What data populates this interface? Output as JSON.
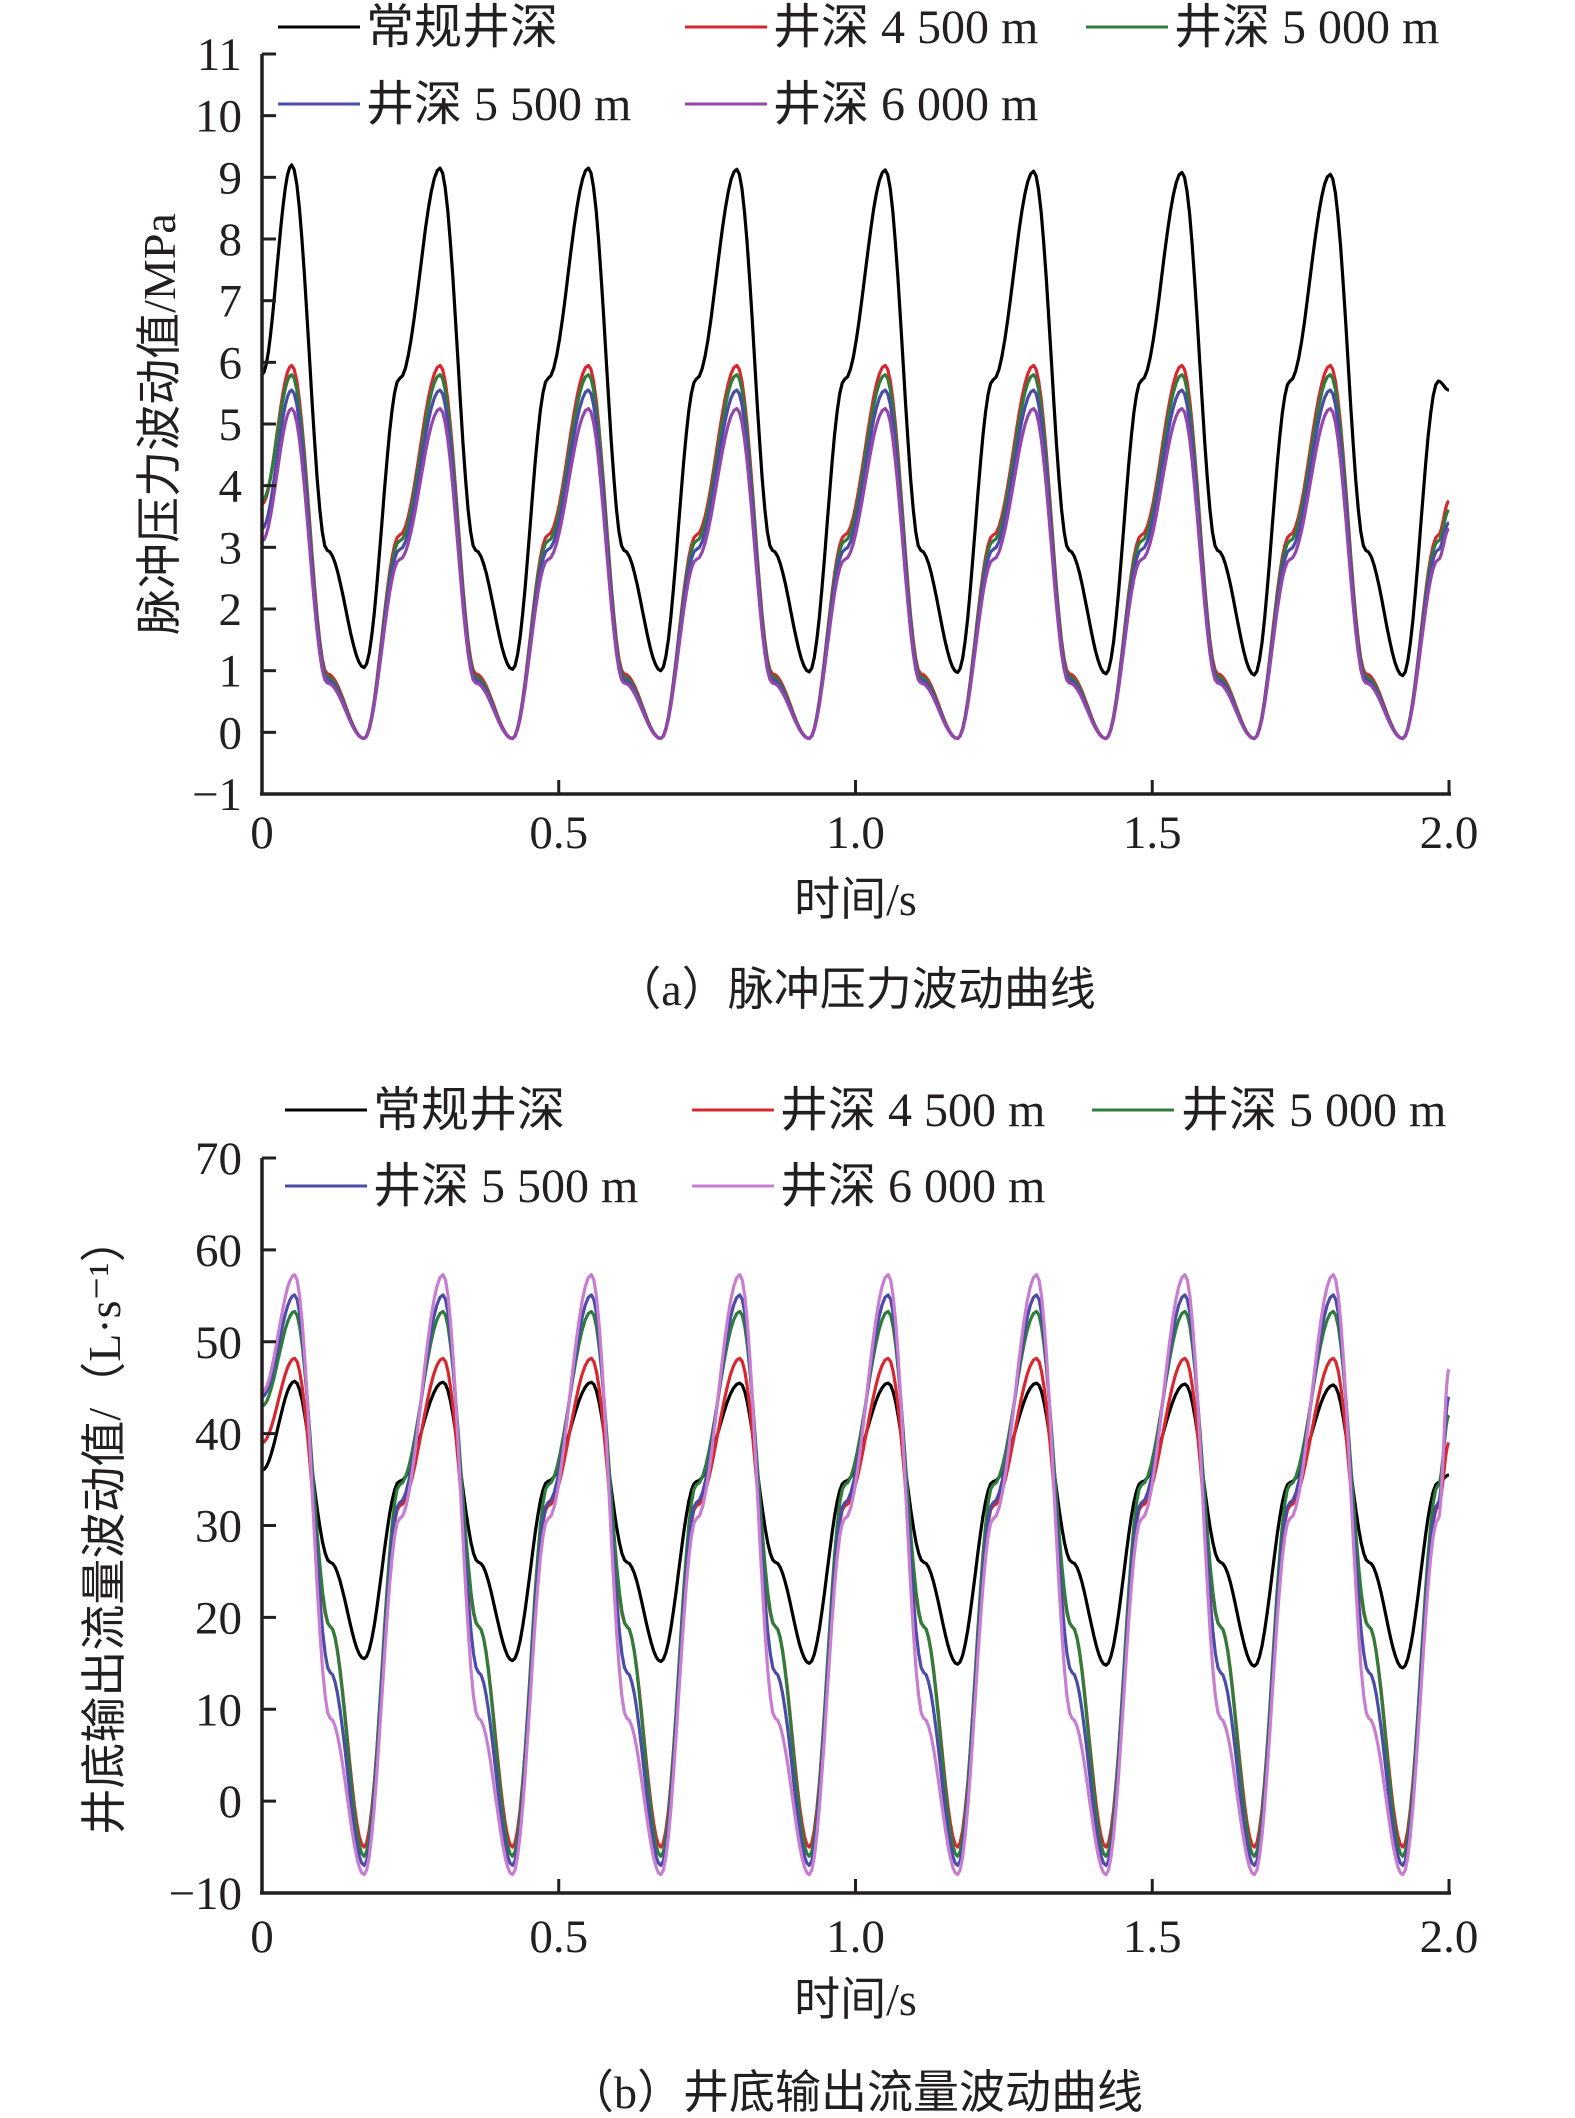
{
  "chart_data": [
    {
      "type": "line",
      "caption": "（a）脉冲压力波动曲线",
      "xlabel": "时间/s",
      "ylabel": "脉冲压力波动值/MPa",
      "xlim": [
        0,
        2.0
      ],
      "ylim": [
        -1,
        11
      ],
      "xticks": [
        0,
        0.5,
        1.0,
        1.5,
        2.0
      ],
      "xtick_labels": [
        "0",
        "0.5",
        "1.0",
        "1.5",
        "2.0"
      ],
      "yticks": [
        -1,
        0,
        1,
        2,
        3,
        4,
        5,
        6,
        7,
        8,
        9,
        10,
        11
      ],
      "ytick_labels": [
        "−1",
        "0",
        "1",
        "2",
        "3",
        "4",
        "5",
        "6",
        "7",
        "8",
        "9",
        "10",
        "11"
      ],
      "period_s": 0.25,
      "peak_time_s": 0.05,
      "trough_time_s": 0.172,
      "legend": "top",
      "series": [
        {
          "name": "常规井深",
          "color": "#000000",
          "start": 5.8,
          "end": 5.55,
          "shoulder": 2.95,
          "peaks": [
            9.2,
            9.15,
            9.15,
            9.13,
            9.12,
            9.1,
            9.08,
            9.05
          ],
          "troughs": [
            1.05,
            1.02,
            1.0,
            0.98,
            0.97,
            0.95,
            0.93,
            0.92
          ]
        },
        {
          "name": "井深 4 500 m",
          "color": "#d7282f",
          "start": 3.7,
          "end": 3.75,
          "shoulder": 0.95,
          "peaks": [
            5.95,
            5.95,
            5.95,
            5.95,
            5.95,
            5.95,
            5.95,
            5.95
          ],
          "troughs": [
            -0.1,
            -0.1,
            -0.1,
            -0.1,
            -0.1,
            -0.1,
            -0.1,
            -0.1
          ]
        },
        {
          "name": "井深 5 000 m",
          "color": "#2e7d3a",
          "start": 3.75,
          "end": 3.6,
          "shoulder": 0.9,
          "peaks": [
            5.8,
            5.8,
            5.8,
            5.8,
            5.8,
            5.8,
            5.8,
            5.8
          ],
          "troughs": [
            -0.1,
            -0.1,
            -0.1,
            -0.1,
            -0.1,
            -0.1,
            -0.1,
            -0.1
          ]
        },
        {
          "name": "井深 5 500 m",
          "color": "#4b4ba8",
          "start": 3.3,
          "end": 3.4,
          "shoulder": 0.85,
          "peaks": [
            5.55,
            5.55,
            5.55,
            5.55,
            5.55,
            5.55,
            5.55,
            5.55
          ],
          "troughs": [
            -0.1,
            -0.1,
            -0.1,
            -0.1,
            -0.1,
            -0.1,
            -0.1,
            -0.1
          ]
        },
        {
          "name": "井深 6 000 m",
          "color": "#9347ab",
          "start": 3.1,
          "end": 3.3,
          "shoulder": 0.8,
          "peaks": [
            5.25,
            5.25,
            5.25,
            5.25,
            5.25,
            5.25,
            5.25,
            5.25
          ],
          "troughs": [
            -0.1,
            -0.1,
            -0.1,
            -0.1,
            -0.1,
            -0.1,
            -0.1,
            -0.1
          ]
        }
      ]
    },
    {
      "type": "line",
      "caption": "（b）井底输出流量波动曲线",
      "xlabel": "时间/s",
      "ylabel": "井底输出流量波动值/（L·s⁻¹）",
      "xlim": [
        0,
        2.0
      ],
      "ylim": [
        -10,
        70
      ],
      "xticks": [
        0,
        0.5,
        1.0,
        1.5,
        2.0
      ],
      "xtick_labels": [
        "0",
        "0.5",
        "1.0",
        "1.5",
        "2.0"
      ],
      "yticks": [
        -10,
        0,
        10,
        20,
        30,
        40,
        50,
        60,
        70
      ],
      "ytick_labels": [
        "−10",
        "0",
        "10",
        "20",
        "30",
        "40",
        "50",
        "60",
        "70"
      ],
      "period_s": 0.25,
      "peak_time_s": 0.055,
      "trough_time_s": 0.172,
      "legend": "top",
      "series": [
        {
          "name": "常规井深",
          "color": "#000000",
          "start": 36,
          "end": 35.5,
          "shoulder": 26,
          "peaks": [
            45.7,
            45.6,
            45.6,
            45.5,
            45.5,
            45.5,
            45.4,
            45.3
          ],
          "troughs": [
            15.5,
            15.3,
            15.2,
            15.0,
            14.9,
            14.8,
            14.7,
            14.5
          ]
        },
        {
          "name": "井深 4 500 m",
          "color": "#d7282f",
          "start": 39,
          "end": 39,
          "shoulder": 19,
          "peaks": [
            48.2,
            48.2,
            48.2,
            48.2,
            48.2,
            48.2,
            48.2,
            48.2
          ],
          "troughs": [
            -5,
            -5,
            -5,
            -5,
            -5,
            -5,
            -5,
            -5
          ]
        },
        {
          "name": "井深 5 000 m",
          "color": "#2e7d3a",
          "start": 43,
          "end": 42,
          "shoulder": 19,
          "peaks": [
            53.3,
            53.3,
            53.3,
            53.3,
            53.3,
            53.3,
            53.3,
            53.3
          ],
          "troughs": [
            -6,
            -6,
            -6,
            -6,
            -6,
            -6,
            -6,
            -6
          ]
        },
        {
          "name": "井深 5 500 m",
          "color": "#4b4ba8",
          "start": 44,
          "end": 44,
          "shoulder": 14,
          "peaks": [
            55.1,
            55.1,
            55.1,
            55.1,
            55.1,
            55.1,
            55.1,
            55.1
          ],
          "troughs": [
            -7,
            -7,
            -7,
            -7,
            -7,
            -7,
            -7,
            -7
          ]
        },
        {
          "name": "井深 6 000 m",
          "color": "#c77dd0",
          "start": 44.5,
          "end": 47,
          "shoulder": 9,
          "peaks": [
            57.3,
            57.3,
            57.3,
            57.3,
            57.3,
            57.3,
            57.3,
            57.3
          ],
          "troughs": [
            -8,
            -8,
            -8,
            -8,
            -8,
            -8,
            -8,
            -8
          ]
        }
      ]
    }
  ]
}
